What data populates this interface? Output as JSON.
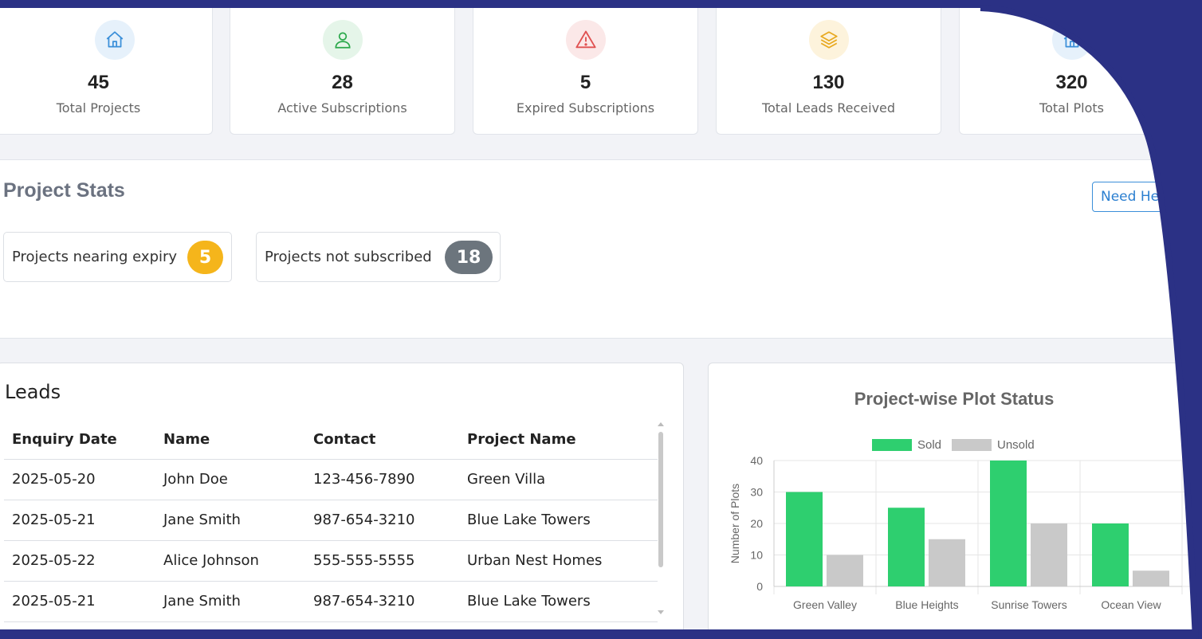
{
  "stat_cards": [
    {
      "value": "45",
      "label": "Total Projects",
      "icon": "home-icon",
      "color": "#3b8fd9",
      "bg": "#e6f1fb"
    },
    {
      "value": "28",
      "label": "Active Subscriptions",
      "icon": "user-icon",
      "color": "#2aa84a",
      "bg": "#e5f5e9"
    },
    {
      "value": "5",
      "label": "Expired Subscriptions",
      "icon": "warning-icon",
      "color": "#e05252",
      "bg": "#fbe8e8"
    },
    {
      "value": "130",
      "label": "Total Leads Received",
      "icon": "layers-icon",
      "color": "#e8a920",
      "bg": "#fdf3dc"
    },
    {
      "value": "320",
      "label": "Total Plots",
      "icon": "home-icon",
      "color": "#3b8fd9",
      "bg": "#e6f1fb"
    }
  ],
  "project_stats": {
    "title": "Project Stats",
    "help_button": "Need Help",
    "nearing_expiry": {
      "label": "Projects nearing expiry",
      "count": "5",
      "color": "#f5b51b"
    },
    "not_subscribed": {
      "label": "Projects not subscribed",
      "count": "18",
      "color": "#6c757d"
    }
  },
  "leads": {
    "title": "Leads",
    "columns": [
      "Enquiry Date",
      "Name",
      "Contact",
      "Project Name"
    ],
    "rows": [
      [
        "2025-05-20",
        "John Doe",
        "123-456-7890",
        "Green Villa"
      ],
      [
        "2025-05-21",
        "Jane Smith",
        "987-654-3210",
        "Blue Lake Towers"
      ],
      [
        "2025-05-22",
        "Alice Johnson",
        "555-555-5555",
        "Urban Nest Homes"
      ],
      [
        "2025-05-21",
        "Jane Smith",
        "987-654-3210",
        "Blue Lake Towers"
      ]
    ]
  },
  "chart_data": {
    "type": "bar",
    "title": "Project-wise Plot Status",
    "ylabel": "Number of Plots",
    "xlabel": "",
    "categories": [
      "Green Valley",
      "Blue Heights",
      "Sunrise Towers",
      "Ocean View"
    ],
    "series": [
      {
        "name": "Sold",
        "values": [
          30,
          25,
          40,
          20
        ],
        "color": "#2ecf6f"
      },
      {
        "name": "Unsold",
        "values": [
          10,
          15,
          20,
          5
        ],
        "color": "#c9c9c9"
      }
    ],
    "ylim": [
      0,
      40
    ],
    "yticks": [
      0,
      10,
      20,
      30,
      40
    ],
    "grid": true,
    "legend": "top"
  },
  "theme": {
    "frame_color": "#2b3185"
  }
}
